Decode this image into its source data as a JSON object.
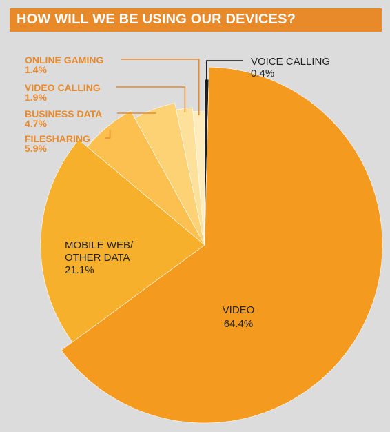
{
  "chart_data": {
    "type": "pie",
    "title": "HOW WILL WE BE USING OUR DEVICES?",
    "unit": "%",
    "slices": [
      {
        "label": "VOICE CALLING",
        "value": 0.4,
        "display": "0.4%",
        "color": "#1f1f1f"
      },
      {
        "label": "VIDEO",
        "value": 64.4,
        "display": "64.4%",
        "color": "#f39a1f"
      },
      {
        "label": "MOBILE WEB/ OTHER DATA",
        "value": 21.1,
        "display": "21.1%",
        "color": "#f7b02b"
      },
      {
        "label": "FILESHARING",
        "value": 5.9,
        "display": "5.9%",
        "color": "#fbc050"
      },
      {
        "label": "BUSINESS DATA",
        "value": 4.7,
        "display": "4.7%",
        "color": "#fcd275"
      },
      {
        "label": "VIDEO CALLING",
        "value": 1.9,
        "display": "1.9%",
        "color": "#fde09a"
      },
      {
        "label": "ONLINE GAMING",
        "value": 1.4,
        "display": "1.4%",
        "color": "#feecbd"
      }
    ],
    "colors": {
      "title_bar": "#e8892a",
      "label_orange": "#e8892a",
      "leader_line": "#e8892a"
    }
  }
}
